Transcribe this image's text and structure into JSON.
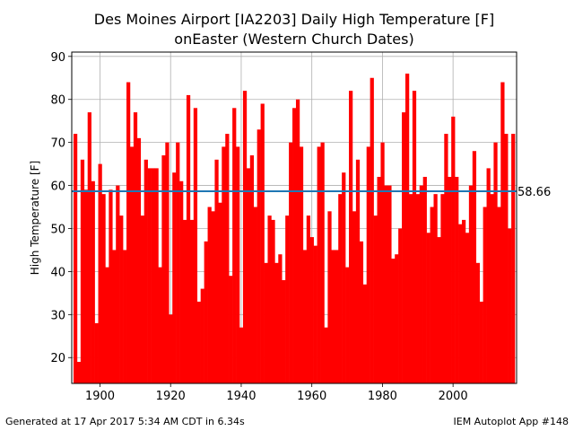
{
  "chart_data": {
    "type": "bar",
    "title_line1": "Des Moines Airport [IA2203] Daily High Temperature [F]",
    "title_line2": "onEaster (Western Church Dates)",
    "xlabel": "",
    "ylabel": "High Temperature [F]",
    "xlim": [
      1892,
      2018
    ],
    "ylim": [
      14,
      91
    ],
    "x_ticks": [
      1900,
      1920,
      1940,
      1960,
      1980,
      2000
    ],
    "y_ticks": [
      20,
      30,
      40,
      50,
      60,
      70,
      80,
      90
    ],
    "grid": true,
    "bar_color": "#ff0000",
    "mean_line": {
      "value": 58.66,
      "label": "58.66",
      "color": "#1f77b4"
    },
    "x": [
      1893,
      1894,
      1895,
      1896,
      1897,
      1898,
      1899,
      1900,
      1901,
      1902,
      1903,
      1904,
      1905,
      1906,
      1907,
      1908,
      1909,
      1910,
      1911,
      1912,
      1913,
      1914,
      1915,
      1916,
      1917,
      1918,
      1919,
      1920,
      1921,
      1922,
      1923,
      1924,
      1925,
      1926,
      1927,
      1928,
      1929,
      1930,
      1931,
      1932,
      1933,
      1934,
      1935,
      1936,
      1937,
      1938,
      1939,
      1940,
      1941,
      1942,
      1943,
      1944,
      1945,
      1946,
      1947,
      1948,
      1949,
      1950,
      1951,
      1952,
      1953,
      1954,
      1955,
      1956,
      1957,
      1958,
      1959,
      1960,
      1961,
      1962,
      1963,
      1964,
      1965,
      1966,
      1967,
      1968,
      1969,
      1970,
      1971,
      1972,
      1973,
      1974,
      1975,
      1976,
      1977,
      1978,
      1979,
      1980,
      1981,
      1982,
      1983,
      1984,
      1985,
      1986,
      1987,
      1988,
      1989,
      1990,
      1991,
      1992,
      1993,
      1994,
      1995,
      1996,
      1997,
      1998,
      1999,
      2000,
      2001,
      2002,
      2003,
      2004,
      2005,
      2006,
      2007,
      2008,
      2009,
      2010,
      2011,
      2012,
      2013,
      2014,
      2015,
      2016,
      2017
    ],
    "values": [
      72,
      19,
      66,
      59,
      77,
      61,
      28,
      65,
      58,
      41,
      59,
      45,
      60,
      53,
      45,
      84,
      69,
      77,
      71,
      53,
      66,
      64,
      64,
      64,
      41,
      67,
      70,
      30,
      63,
      70,
      61,
      52,
      81,
      52,
      78,
      33,
      36,
      47,
      55,
      54,
      66,
      56,
      69,
      72,
      39,
      78,
      69,
      27,
      82,
      64,
      67,
      55,
      73,
      79,
      42,
      53,
      52,
      42,
      44,
      38,
      53,
      70,
      78,
      80,
      69,
      45,
      53,
      48,
      46,
      69,
      70,
      27,
      54,
      45,
      45,
      58,
      63,
      41,
      82,
      54,
      66,
      47,
      37,
      69,
      85,
      53,
      62,
      70,
      60,
      60,
      43,
      44,
      50,
      77,
      86,
      58,
      82,
      58,
      60,
      62,
      49,
      55,
      58,
      48,
      58,
      72,
      62,
      76,
      62,
      51,
      52,
      49,
      60,
      68,
      42,
      33,
      55,
      64,
      58,
      70,
      55,
      84,
      72,
      50,
      72
    ]
  },
  "footer": {
    "left": "Generated at 17 Apr 2017 5:34 AM CDT in 6.34s",
    "right": "IEM Autoplot App #148"
  }
}
